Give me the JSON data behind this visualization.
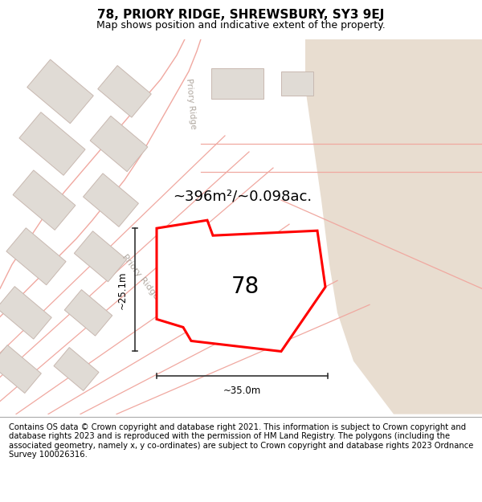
{
  "title": "78, PRIORY RIDGE, SHREWSBURY, SY3 9EJ",
  "subtitle": "Map shows position and indicative extent of the property.",
  "footer": "Contains OS data © Crown copyright and database right 2021. This information is subject to Crown copyright and database rights 2023 and is reproduced with the permission of HM Land Registry. The polygons (including the associated geometry, namely x, y co-ordinates) are subject to Crown copyright and database rights 2023 Ordnance Survey 100026316.",
  "area_label": "~396m²/~0.098ac.",
  "number_label": "78",
  "dim_horizontal": "~35.0m",
  "dim_vertical": "~25.1m",
  "road_label": "Priory Ridge",
  "map_bg": "#f7f4f1",
  "plot_fill": "#f0ece8",
  "tan_fill": "#e8ddd0",
  "plot_edge": "#ff0000",
  "building_fill": "#e0dbd5",
  "building_edge": "#c8b8b0",
  "road_line_color": "#f0a8a0",
  "dim_line_color": "#333333",
  "title_fontsize": 11,
  "subtitle_fontsize": 9,
  "footer_fontsize": 7.2,
  "area_fontsize": 13
}
